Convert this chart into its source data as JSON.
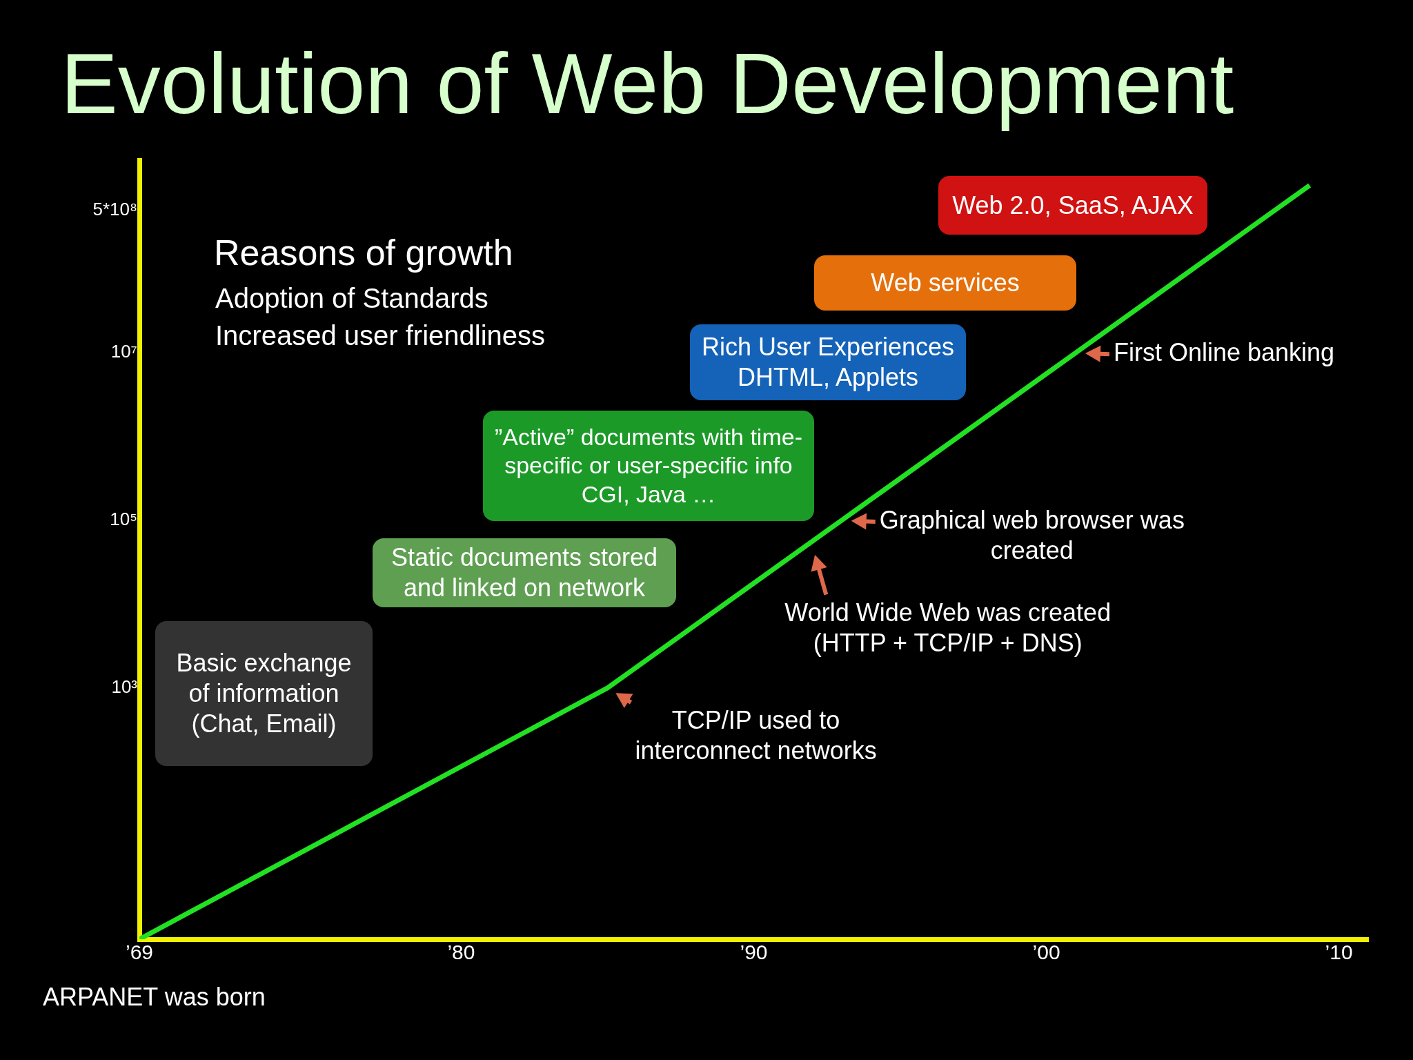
{
  "chart_data": {
    "type": "line",
    "title": "Evolution of Web Development",
    "x": [
      1969,
      1985,
      1993,
      2001,
      2009
    ],
    "series": [
      {
        "color": "#22e022",
        "values": [
          1,
          1000,
          100000,
          10000000,
          1000000000
        ]
      }
    ],
    "xlim": [
      1969,
      2011
    ],
    "xticks": [
      {
        "value": 1969,
        "label": "’69"
      },
      {
        "value": 1980,
        "label": "’80"
      },
      {
        "value": 1990,
        "label": "’90"
      },
      {
        "value": 2000,
        "label": "’00"
      },
      {
        "value": 2010,
        "label": "’10"
      }
    ],
    "ylim": [
      1,
      2000000000
    ],
    "log": true,
    "yticks": [
      {
        "value": 1000,
        "label": "10³"
      },
      {
        "value": 100000,
        "label": "10⁵"
      },
      {
        "value": 10000000,
        "label": "10⁷"
      },
      {
        "value": 500000000,
        "label": "5*10⁸"
      }
    ],
    "grid": false,
    "legend": false,
    "marker": "none",
    "annotations": [
      {
        "text": "ARPANET was born",
        "x": 1969,
        "y": 1
      },
      {
        "text": "TCP/IP used to\ninterconnect networks",
        "x": 1985,
        "y": 1000
      },
      {
        "text": "World Wide Web was created\n(HTTP + TCP/IP + DNS)",
        "x": 1992,
        "y": 50000
      },
      {
        "text": "Graphical web browser was\ncreated",
        "x": 1993,
        "y": 100000
      },
      {
        "text": "First Online banking",
        "x": 2001,
        "y": 10000000
      },
      "Reasons of growth",
      "Adoption of Standards",
      "Increased user friendliness",
      "Basic exchange\nof information\n(Chat, Email)",
      "Static documents stored\nand linked on network",
      "”Active” documents with time-\nspecific or user-specific info\nCGI, Java …",
      "Rich User Experiences\nDHTML, Applets",
      "Web services",
      "Web 2.0, SaaS, AJAX"
    ]
  }
}
